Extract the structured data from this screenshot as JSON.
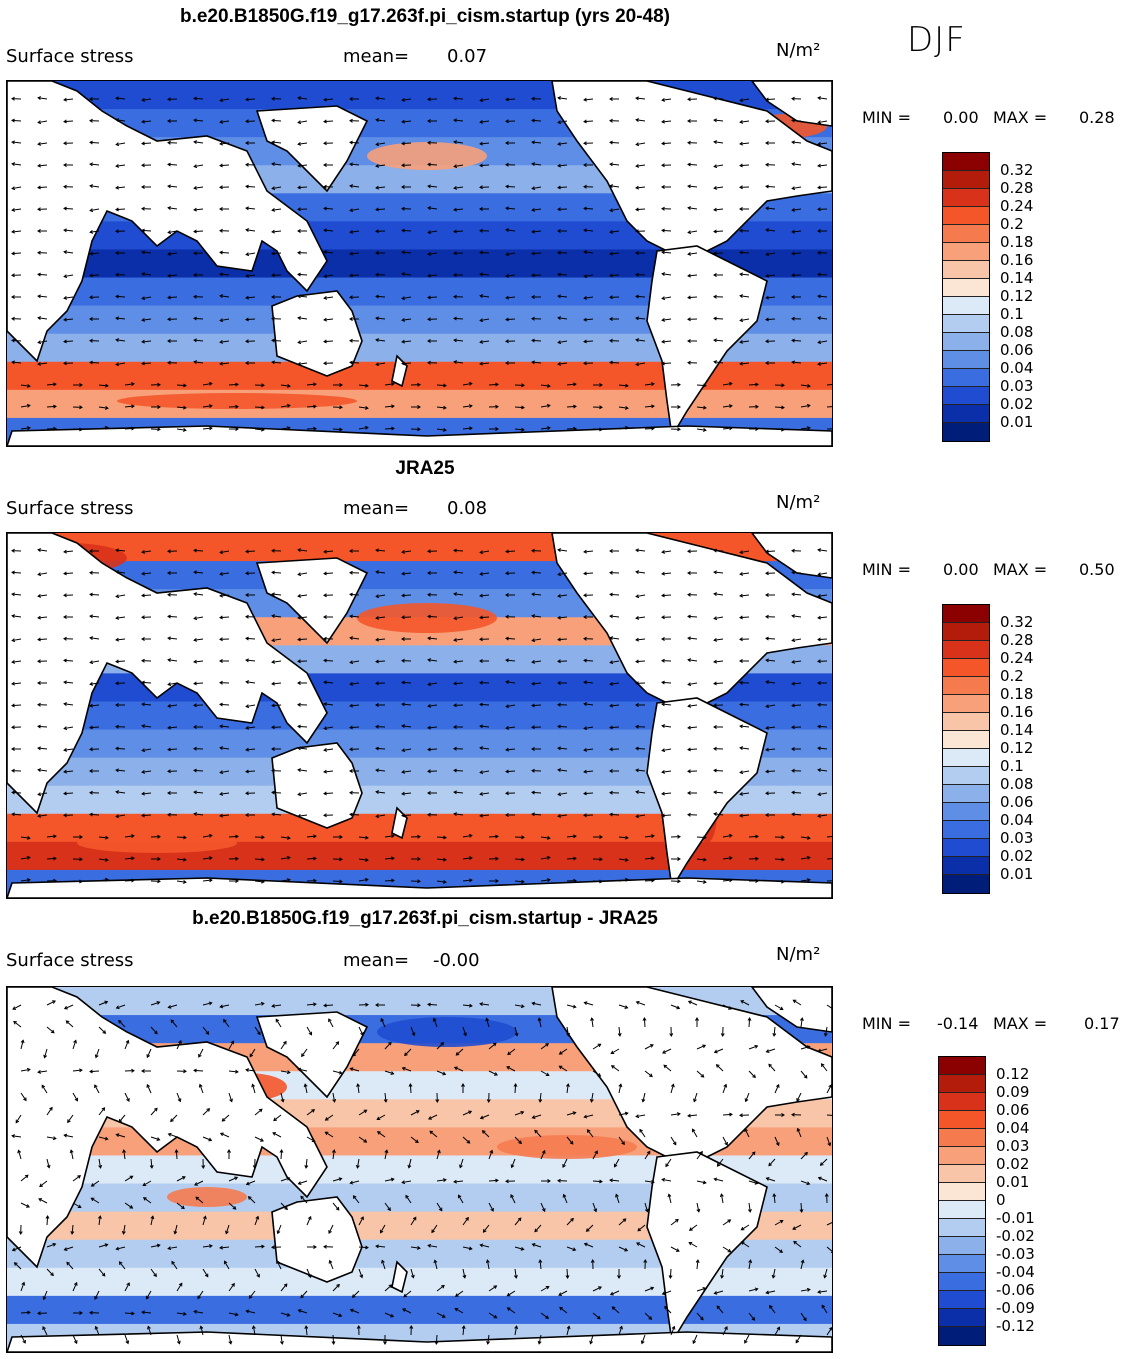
{
  "season": "DJF",
  "panels": [
    {
      "title": "b.e20.B1850G.f19_g17.263f.pi_cism.startup (yrs 20-48)",
      "variable": "Surface stress",
      "mean_label": "mean=",
      "mean_value": "0.07",
      "units": "N/m²",
      "min_label": "MIN =",
      "min_value": "0.00",
      "max_label": "MAX =",
      "max_value": "0.28",
      "colorbar": {
        "labels": [
          "0.32",
          "0.28",
          "0.24",
          "0.2",
          "0.18",
          "0.16",
          "0.14",
          "0.12",
          "0.1",
          "0.08",
          "0.06",
          "0.04",
          "0.03",
          "0.02",
          "0.01"
        ],
        "colors": [
          "#8b0000",
          "#b31b0a",
          "#d9321a",
          "#f4562a",
          "#f57b4f",
          "#f7a07a",
          "#f9c5a8",
          "#fbe6d6",
          "#dceaf8",
          "#b3cdf0",
          "#8bb0ea",
          "#5f8ee6",
          "#3a6de0",
          "#1f4cd1",
          "#0b2fa8",
          "#001d7a"
        ]
      }
    },
    {
      "title": "JRA25",
      "variable": "Surface stress",
      "mean_label": "mean=",
      "mean_value": "0.08",
      "units": "N/m²",
      "min_label": "MIN =",
      "min_value": "0.00",
      "max_label": "MAX =",
      "max_value": "0.50",
      "colorbar": {
        "labels": [
          "0.32",
          "0.28",
          "0.24",
          "0.2",
          "0.18",
          "0.16",
          "0.14",
          "0.12",
          "0.1",
          "0.08",
          "0.06",
          "0.04",
          "0.03",
          "0.02",
          "0.01"
        ],
        "colors": [
          "#8b0000",
          "#b31b0a",
          "#d9321a",
          "#f4562a",
          "#f57b4f",
          "#f7a07a",
          "#f9c5a8",
          "#fbe6d6",
          "#dceaf8",
          "#b3cdf0",
          "#8bb0ea",
          "#5f8ee6",
          "#3a6de0",
          "#1f4cd1",
          "#0b2fa8",
          "#001d7a"
        ]
      }
    },
    {
      "title": "b.e20.B1850G.f19_g17.263f.pi_cism.startup - JRA25",
      "variable": "Surface stress",
      "mean_label": "mean=",
      "mean_value": "-0.00",
      "units": "N/m²",
      "min_label": "MIN =",
      "min_value": "-0.14",
      "max_label": "MAX =",
      "max_value": "0.17",
      "colorbar": {
        "labels": [
          "0.12",
          "0.09",
          "0.06",
          "0.04",
          "0.03",
          "0.02",
          "0.01",
          "0",
          "-0.01",
          "-0.02",
          "-0.03",
          "-0.04",
          "-0.06",
          "-0.09",
          "-0.12"
        ],
        "colors": [
          "#8b0000",
          "#b31b0a",
          "#d9321a",
          "#f4562a",
          "#f57b4f",
          "#f7a07a",
          "#f9c5a8",
          "#fbe6d6",
          "#dceaf8",
          "#b3cdf0",
          "#8bb0ea",
          "#5f8ee6",
          "#3a6de0",
          "#1f4cd1",
          "#0b2fa8",
          "#001d7a"
        ]
      }
    }
  ]
}
